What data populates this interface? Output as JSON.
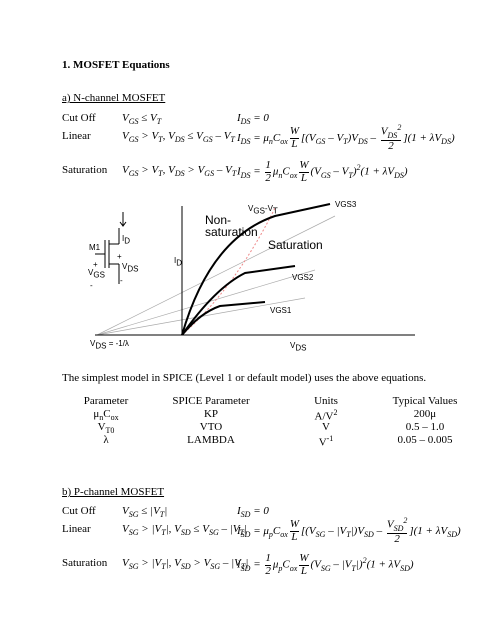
{
  "title": "1. MOSFET Equations",
  "n_channel": {
    "heading": "a) N-channel MOSFET",
    "rows": [
      {
        "label": "Cut Off",
        "condition": [
          "V",
          {
            "sub": "GS"
          },
          " ≤ V",
          {
            "sub": "T"
          }
        ],
        "equation": [
          "I",
          {
            "sub": "DS"
          },
          " = 0"
        ]
      },
      {
        "label": "Linear",
        "condition": [
          "V",
          {
            "sub": "GS"
          },
          " > V",
          {
            "sub": "T"
          },
          ", V",
          {
            "sub": "DS"
          },
          " ≤ V",
          {
            "sub": "GS"
          },
          " – V",
          {
            "sub": "T"
          }
        ],
        "equation": [
          "I",
          {
            "sub": "DS"
          },
          " = μ",
          {
            "sub": "n"
          },
          "C",
          {
            "sub": "ox"
          },
          {
            "frac": [
              [
                "W"
              ],
              [
                "L"
              ]
            ]
          },
          "[(V",
          {
            "sub": "GS"
          },
          " – V",
          {
            "sub": "T"
          },
          ")V",
          {
            "sub": "DS"
          },
          " – ",
          {
            "frac": [
              [
                "V",
                {
                  "sub": "DS"
                },
                {
                  "sup": "2"
                }
              ],
              [
                "2"
              ]
            ]
          },
          "](1 + λV",
          {
            "sub": "DS"
          },
          ")"
        ]
      },
      {
        "label": "Saturation",
        "condition": [
          "V",
          {
            "sub": "GS"
          },
          " > V",
          {
            "sub": "T"
          },
          ", V",
          {
            "sub": "DS"
          },
          " > V",
          {
            "sub": "GS"
          },
          " – V",
          {
            "sub": "T"
          }
        ],
        "equation": [
          "I",
          {
            "sub": "DS"
          },
          " = ",
          {
            "frac": [
              [
                "1"
              ],
              [
                "2"
              ]
            ]
          },
          "μ",
          {
            "sub": "n"
          },
          "C",
          {
            "sub": "ox"
          },
          {
            "frac": [
              [
                "W"
              ],
              [
                "L"
              ]
            ]
          },
          "(V",
          {
            "sub": "GS"
          },
          " – V",
          {
            "sub": "T"
          },
          ")",
          {
            "sup": "2"
          },
          "(1 + λV",
          {
            "sub": "DS"
          },
          ")"
        ]
      }
    ]
  },
  "figure": {
    "circuit_device": "M1",
    "circuit_current": [
      "I",
      {
        "sub": "D"
      }
    ],
    "circuit_vds": [
      "V",
      {
        "sub": "DS"
      }
    ],
    "circuit_vgs": [
      "V",
      {
        "sub": "GS"
      }
    ],
    "plus_vds": "+",
    "plus_vgs": "+",
    "minus_vds": "-",
    "minus_vgs": "-",
    "y_axis": [
      "I",
      {
        "sub": "D"
      }
    ],
    "region_linear": "Non-\nsaturation",
    "boundary": [
      "V",
      {
        "sub": "GS"
      },
      "-V",
      {
        "sub": "T"
      }
    ],
    "region_sat": "Saturation",
    "curve3": "VGS3",
    "curve2": "VGS2",
    "curve1": "VGS1",
    "intercept": [
      "V",
      {
        "sub": "DS"
      },
      " = -1/λ"
    ],
    "x_axis": [
      "V",
      {
        "sub": "DS"
      }
    ]
  },
  "sentence": "The simplest model in SPICE (Level 1 or default model) uses the above equations.",
  "spice_table": {
    "header": [
      "Parameter",
      "SPICE Parameter",
      "Units",
      "Typical Values"
    ],
    "rows": [
      [
        [
          "μ",
          {
            "sub": "n"
          },
          "C",
          {
            "sub": "ox"
          }
        ],
        [
          "KP"
        ],
        [
          "A/V",
          {
            "sup": "2"
          }
        ],
        [
          "200μ"
        ]
      ],
      [
        [
          "V",
          {
            "sub": "T0"
          }
        ],
        [
          "VTO"
        ],
        [
          "V"
        ],
        [
          "0.5 – 1.0"
        ]
      ],
      [
        [
          "λ"
        ],
        [
          "LAMBDA"
        ],
        [
          "V",
          {
            "sup": "-1"
          }
        ],
        [
          "0.05 – 0.005"
        ]
      ]
    ]
  },
  "p_channel": {
    "heading": "b) P-channel MOSFET",
    "rows": [
      {
        "label": "Cut Off",
        "condition": [
          "V",
          {
            "sub": "SG"
          },
          " ≤ |V",
          {
            "sub": "T"
          },
          "|"
        ],
        "equation": [
          "I",
          {
            "sub": "SD"
          },
          " = 0"
        ]
      },
      {
        "label": "Linear",
        "condition": [
          "V",
          {
            "sub": "SG"
          },
          " > |V",
          {
            "sub": "T"
          },
          "|, V",
          {
            "sub": "SD"
          },
          " ≤ V",
          {
            "sub": "SG"
          },
          " – |V",
          {
            "sub": "T"
          },
          "|"
        ],
        "equation": [
          "I",
          {
            "sub": "SD"
          },
          " = μ",
          {
            "sub": "p"
          },
          "C",
          {
            "sub": "ox"
          },
          {
            "frac": [
              [
                "W"
              ],
              [
                "L"
              ]
            ]
          },
          "[(V",
          {
            "sub": "SG"
          },
          " – |V",
          {
            "sub": "T"
          },
          "|)V",
          {
            "sub": "SD"
          },
          " – ",
          {
            "frac": [
              [
                "V",
                {
                  "sub": "SD"
                },
                {
                  "sup": "2"
                }
              ],
              [
                "2"
              ]
            ]
          },
          "](1 + λV",
          {
            "sub": "SD"
          },
          ")"
        ]
      },
      {
        "label": "Saturation",
        "condition": [
          "V",
          {
            "sub": "SG"
          },
          " > |V",
          {
            "sub": "T"
          },
          "|, V",
          {
            "sub": "SD"
          },
          " > V",
          {
            "sub": "SG"
          },
          " – |V",
          {
            "sub": "T"
          },
          "|"
        ],
        "equation": [
          "I",
          {
            "sub": "SD"
          },
          " = ",
          {
            "frac": [
              [
                "1"
              ],
              [
                "2"
              ]
            ]
          },
          "μ",
          {
            "sub": "p"
          },
          "C",
          {
            "sub": "ox"
          },
          {
            "frac": [
              [
                "W"
              ],
              [
                "L"
              ]
            ]
          },
          "(V",
          {
            "sub": "SG"
          },
          " – |V",
          {
            "sub": "T"
          },
          "|)",
          {
            "sup": "2"
          },
          "(1 + λV",
          {
            "sub": "SD"
          },
          ")"
        ]
      }
    ]
  }
}
